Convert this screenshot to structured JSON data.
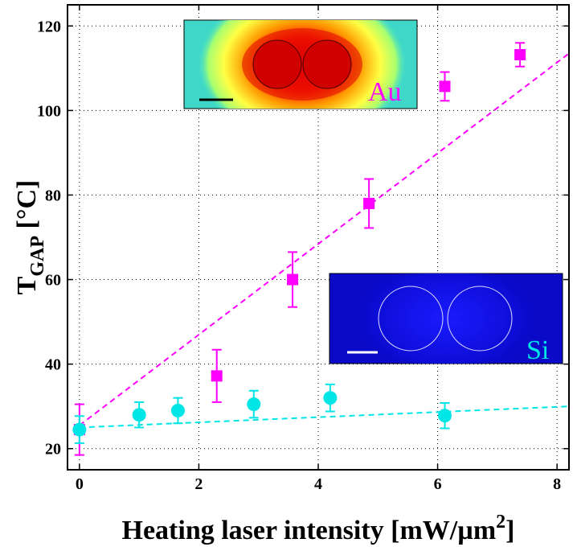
{
  "chart_data": {
    "type": "scatter",
    "title": "",
    "xlabel": "Heating laser intensity [mW/µm",
    "xlabel_superscript": "2",
    "xlabel_suffix": "]",
    "ylabel": "T",
    "ylabel_subscript": "GAP",
    "ylabel_suffix": " [°C]",
    "xlim": [
      -0.2,
      8.2
    ],
    "ylim": [
      15,
      125
    ],
    "xticks": [
      0,
      2,
      4,
      6,
      8
    ],
    "yticks": [
      20,
      40,
      60,
      80,
      100,
      120
    ],
    "grid": true,
    "grid_style": "dotted",
    "series": [
      {
        "name": "Au",
        "color": "#ff00ff",
        "marker": "square",
        "x": [
          0,
          2.3,
          3.57,
          4.85,
          6.12,
          7.38
        ],
        "y": [
          24.5,
          37.2,
          60.0,
          78.0,
          105.7,
          113.2
        ],
        "err": [
          6.0,
          6.2,
          6.5,
          5.8,
          3.4,
          2.8
        ],
        "fit": {
          "x": [
            0,
            8.2
          ],
          "y": [
            25.5,
            113.5
          ],
          "style": "dashed"
        }
      },
      {
        "name": "Si",
        "color": "#00e5e5",
        "marker": "circle",
        "x": [
          0,
          1.0,
          1.65,
          2.92,
          4.2,
          6.12
        ],
        "y": [
          24.5,
          28.0,
          29.0,
          30.5,
          32.0,
          27.8
        ],
        "err": [
          3.2,
          3.0,
          3.0,
          3.2,
          3.2,
          3.0
        ],
        "fit": {
          "x": [
            0,
            8.2
          ],
          "y": [
            25.0,
            30.0
          ],
          "style": "dashed"
        }
      }
    ],
    "insets": [
      {
        "label": "Au",
        "label_color": "#ff00ff",
        "position": "top-center",
        "colormap": "hot"
      },
      {
        "label": "Si",
        "label_color": "#00e5e5",
        "position": "middle-right",
        "colormap": "blue"
      }
    ]
  }
}
